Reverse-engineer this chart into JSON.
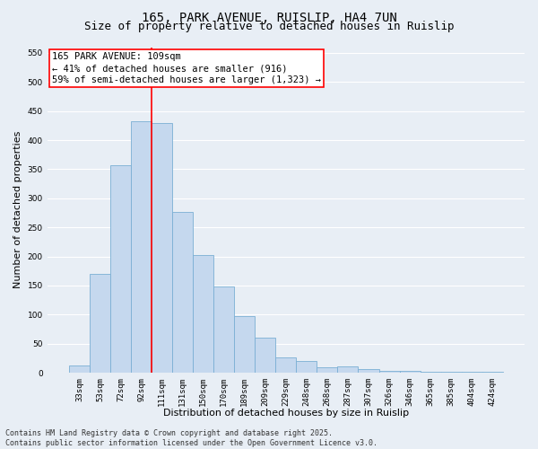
{
  "title_line1": "165, PARK AVENUE, RUISLIP, HA4 7UN",
  "title_line2": "Size of property relative to detached houses in Ruislip",
  "xlabel": "Distribution of detached houses by size in Ruislip",
  "ylabel": "Number of detached properties",
  "categories": [
    "33sqm",
    "53sqm",
    "72sqm",
    "92sqm",
    "111sqm",
    "131sqm",
    "150sqm",
    "170sqm",
    "189sqm",
    "209sqm",
    "229sqm",
    "248sqm",
    "268sqm",
    "287sqm",
    "307sqm",
    "326sqm",
    "346sqm",
    "365sqm",
    "385sqm",
    "404sqm",
    "424sqm"
  ],
  "values": [
    13,
    170,
    357,
    432,
    430,
    277,
    202,
    149,
    98,
    60,
    27,
    20,
    9,
    11,
    6,
    4,
    3,
    2,
    1,
    1,
    2
  ],
  "bar_color": "#c5d8ee",
  "bar_edge_color": "#7aafd4",
  "bar_linewidth": 0.6,
  "vline_color": "red",
  "vline_linewidth": 1.2,
  "vline_x_index": 3.5,
  "annotation_box_text": "165 PARK AVENUE: 109sqm\n← 41% of detached houses are smaller (916)\n59% of semi-detached houses are larger (1,323) →",
  "box_edge_color": "red",
  "box_face_color": "white",
  "ylim": [
    0,
    560
  ],
  "yticks": [
    0,
    50,
    100,
    150,
    200,
    250,
    300,
    350,
    400,
    450,
    500,
    550
  ],
  "footer_line1": "Contains HM Land Registry data © Crown copyright and database right 2025.",
  "footer_line2": "Contains public sector information licensed under the Open Government Licence v3.0.",
  "bg_color": "#e8eef5",
  "plot_bg_color": "#e8eef5",
  "grid_color": "#ffffff",
  "title_fontsize": 10,
  "subtitle_fontsize": 9,
  "axis_label_fontsize": 8,
  "tick_fontsize": 6.5,
  "annotation_fontsize": 7.5,
  "footer_fontsize": 6
}
